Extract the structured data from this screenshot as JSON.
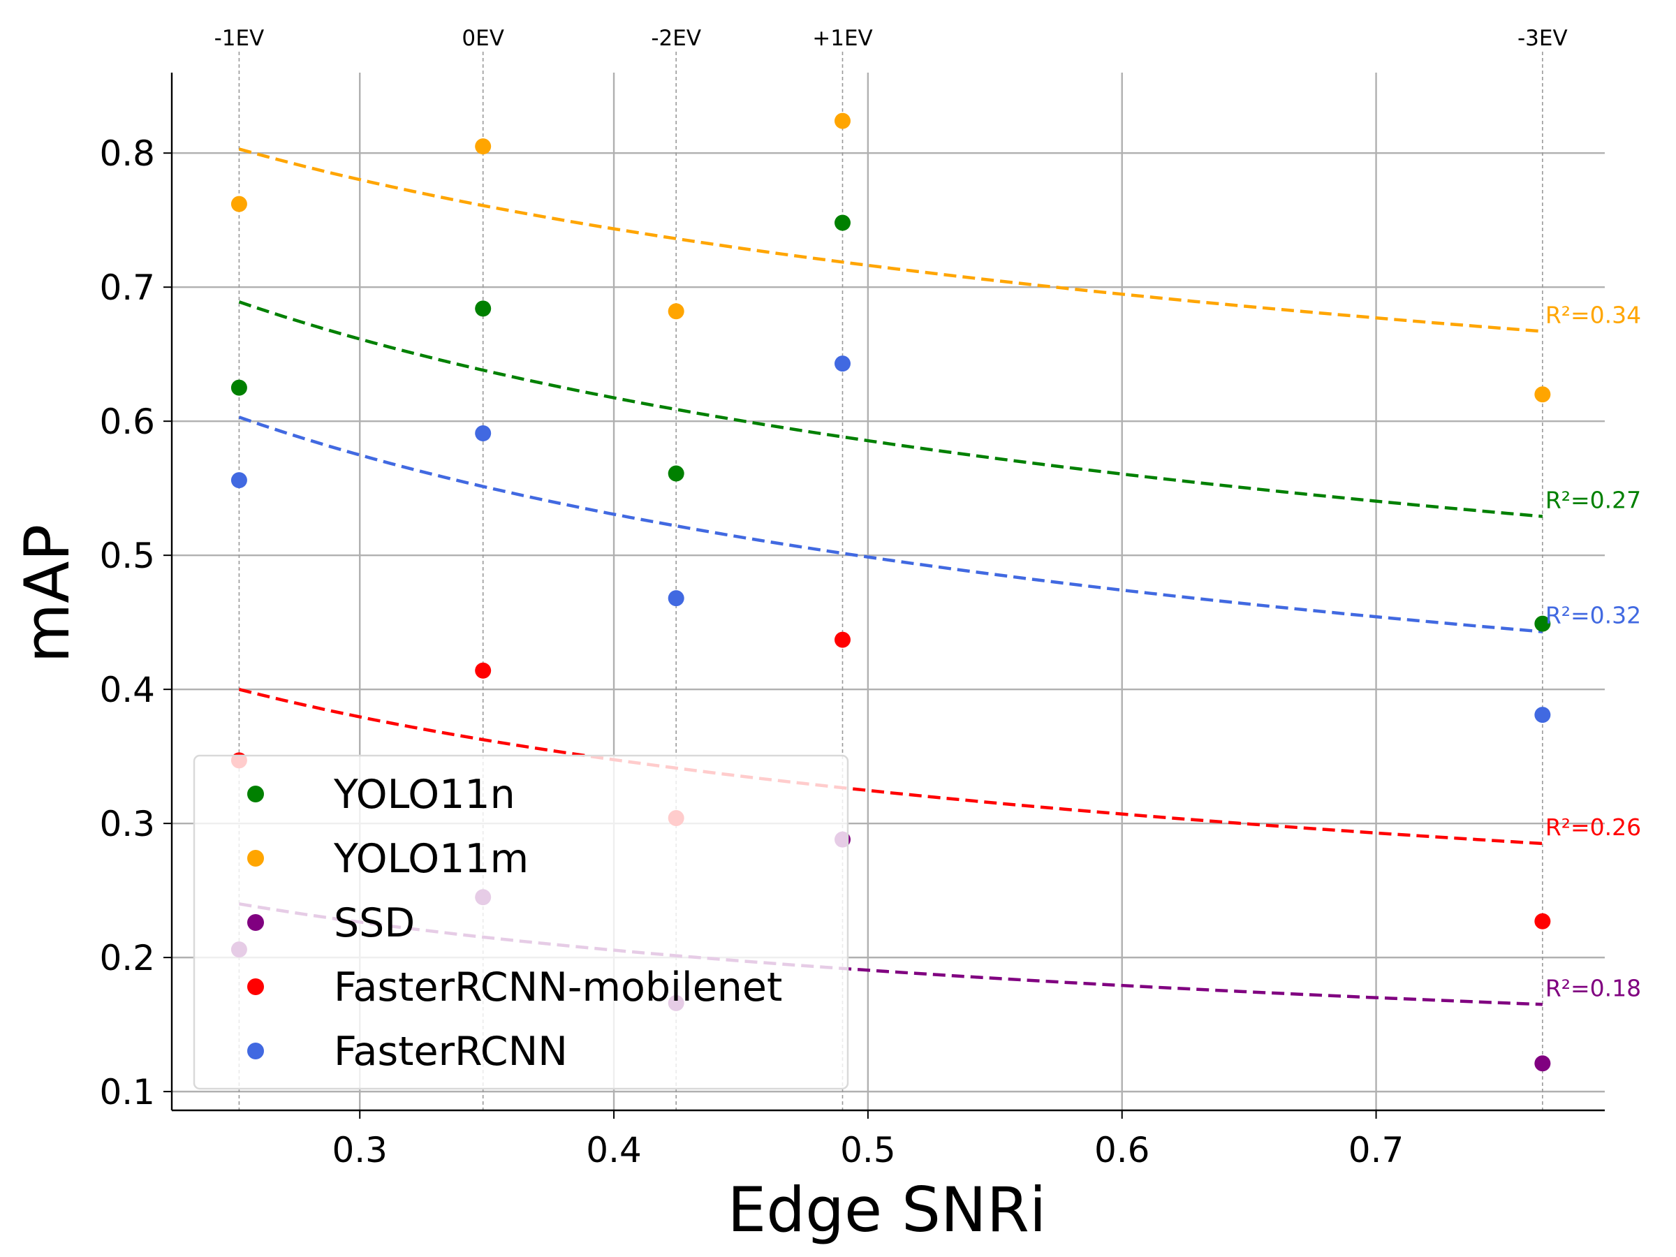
{
  "chart_data": {
    "type": "scatter",
    "title": "",
    "xlabel": "Edge SNRi",
    "ylabel": "mAP",
    "xlim": [
      0.226,
      0.79
    ],
    "ylim": [
      0.086,
      0.86
    ],
    "x_ticks": [
      0.3,
      0.4,
      0.5,
      0.6,
      0.7
    ],
    "x_tick_labels": [
      "0.3",
      "0.4",
      "0.5",
      "0.6",
      "0.7"
    ],
    "y_ticks": [
      0.1,
      0.2,
      0.3,
      0.4,
      0.5,
      0.6,
      0.7,
      0.8
    ],
    "y_tick_labels": [
      "0.1",
      "0.2",
      "0.3",
      "0.4",
      "0.5",
      "0.6",
      "0.7",
      "0.8"
    ],
    "grid": true,
    "legend_position": "lower-left",
    "exposure_markers": [
      {
        "x": 0.2525,
        "label": "-1EV"
      },
      {
        "x": 0.3485,
        "label": "0EV"
      },
      {
        "x": 0.4245,
        "label": "-2EV"
      },
      {
        "x": 0.49,
        "label": "+1EV"
      },
      {
        "x": 0.7655,
        "label": "-3EV"
      }
    ],
    "x": [
      0.2525,
      0.3485,
      0.4245,
      0.49,
      0.7655
    ],
    "series": [
      {
        "name": "YOLO11n",
        "color": "#008000",
        "values": [
          0.625,
          0.684,
          0.561,
          0.748,
          0.449
        ],
        "trend": {
          "start": 0.689,
          "end": 0.529
        },
        "r2_label": "R²=0.27"
      },
      {
        "name": "YOLO11m",
        "color": "#FFA500",
        "values": [
          0.762,
          0.805,
          0.682,
          0.824,
          0.62
        ],
        "trend": {
          "start": 0.803,
          "end": 0.667
        },
        "r2_label": "R²=0.34"
      },
      {
        "name": "SSD",
        "color": "#800080",
        "values": [
          0.206,
          0.245,
          0.166,
          0.288,
          0.121
        ],
        "trend": {
          "start": 0.24,
          "end": 0.165
        },
        "r2_label": "R²=0.18"
      },
      {
        "name": "FasterRCNN-mobilenet",
        "color": "#FF0000",
        "values": [
          0.347,
          0.414,
          0.304,
          0.437,
          0.227
        ],
        "trend": {
          "start": 0.4,
          "end": 0.285
        },
        "r2_label": "R²=0.26"
      },
      {
        "name": "FasterRCNN",
        "color": "#4169E1",
        "values": [
          0.556,
          0.591,
          0.468,
          0.643,
          0.381
        ],
        "trend": {
          "start": 0.603,
          "end": 0.443
        },
        "r2_label": "R²=0.32"
      }
    ]
  }
}
